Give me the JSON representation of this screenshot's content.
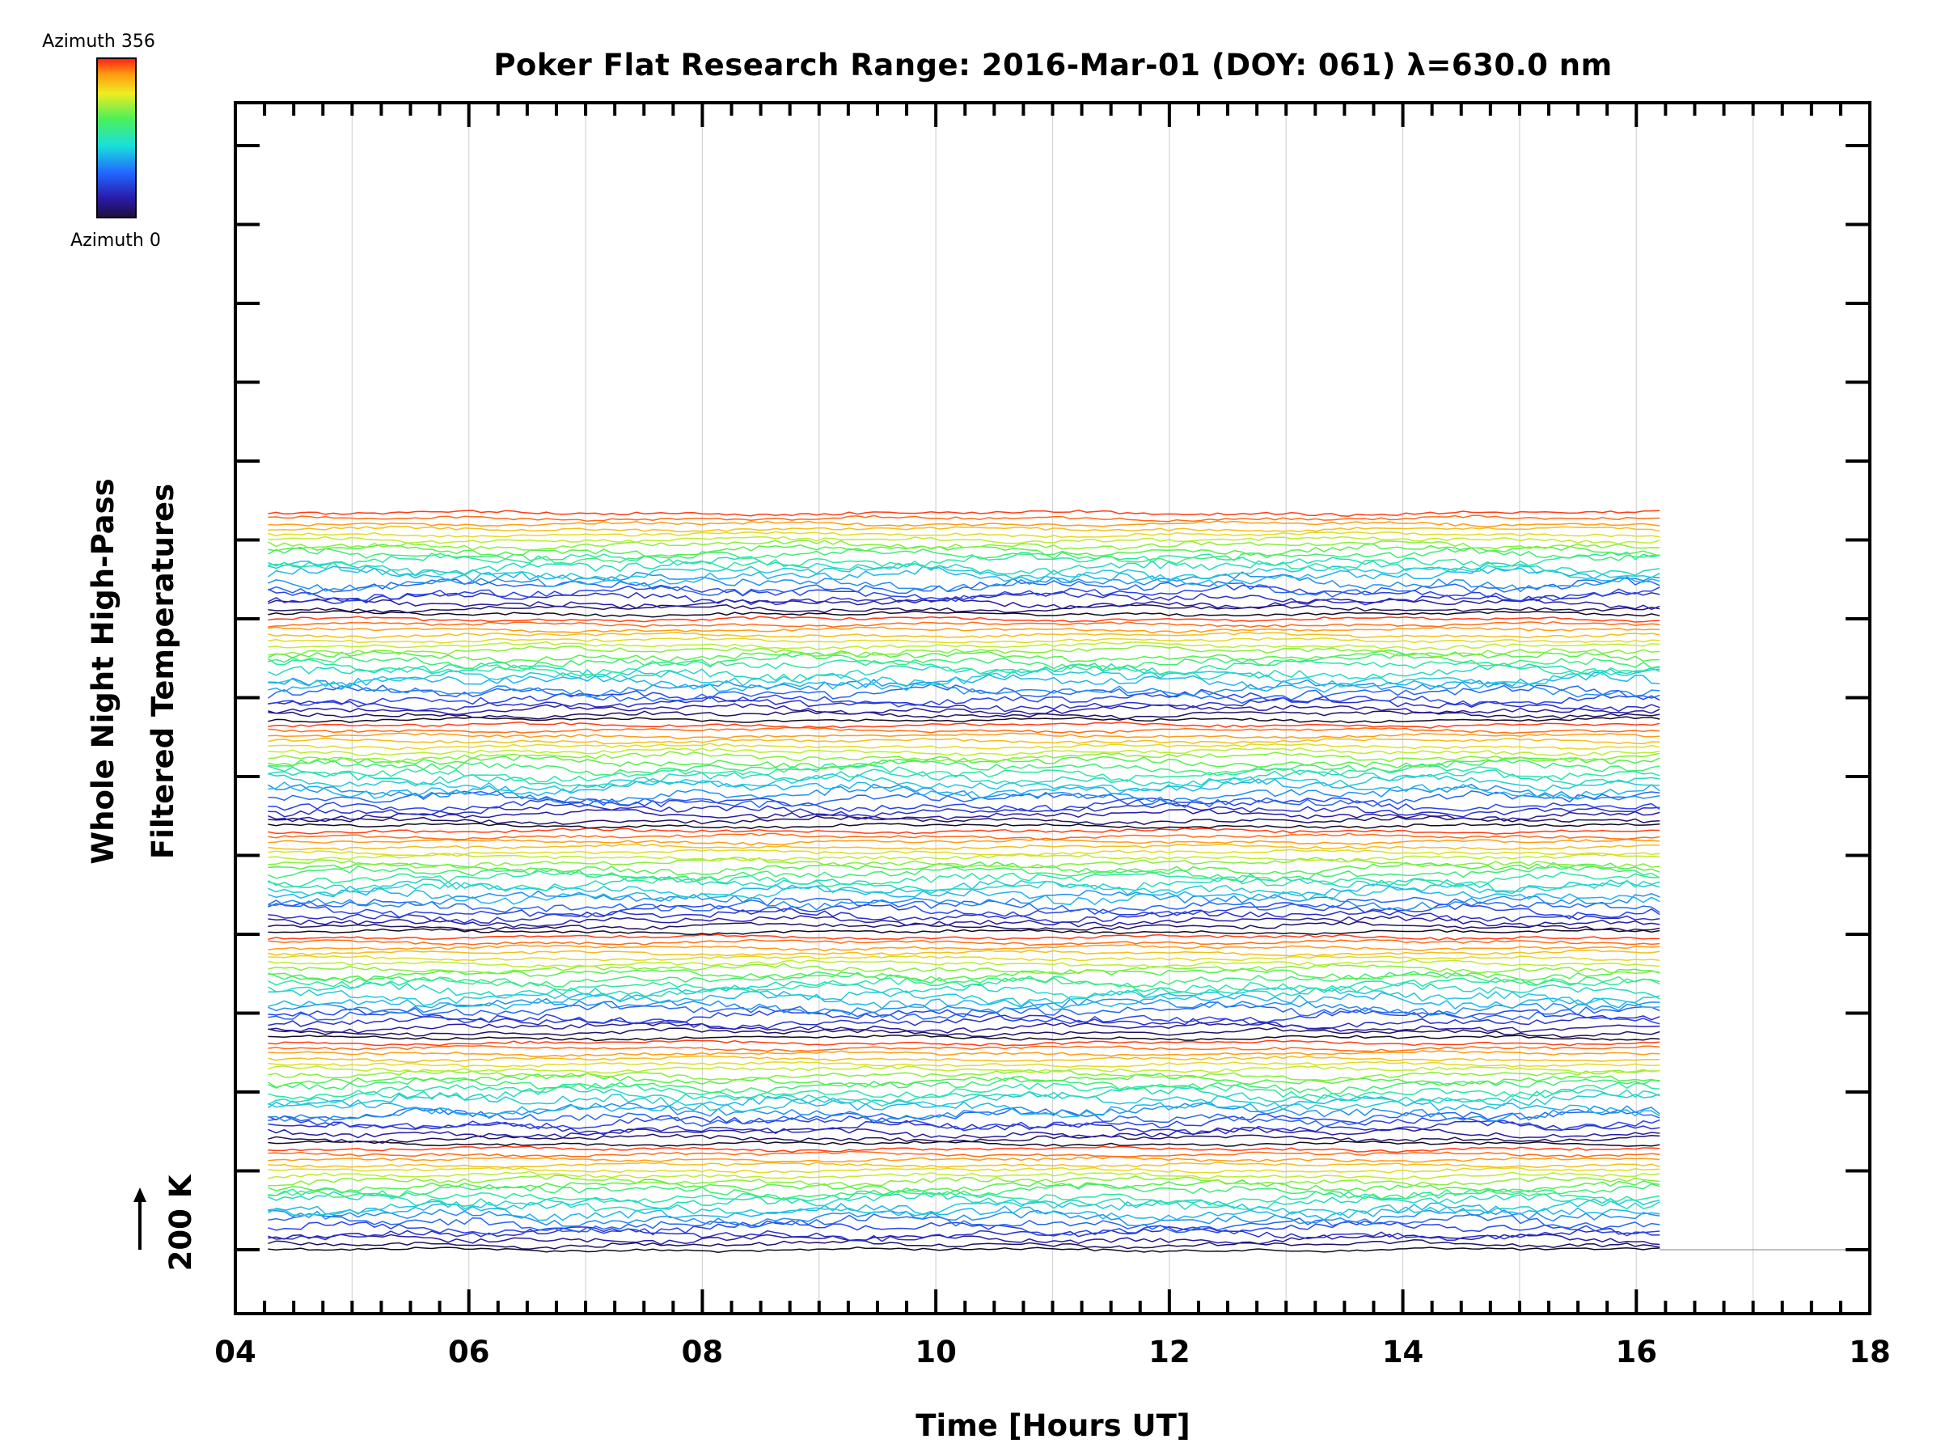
{
  "chart_data": {
    "type": "line",
    "title": "Poker Flat Research Range: 2016-Mar-01 (DOY: 061) λ=630.0 nm",
    "xlabel": "Time [Hours UT]",
    "ylabel_line1": "Whole Night High-Pass",
    "ylabel_line2": "Filtered Temperatures",
    "scale_label": "200 K",
    "xlim": [
      4,
      18
    ],
    "x_ticks": [
      "04",
      "06",
      "08",
      "10",
      "12",
      "14",
      "16",
      "18"
    ],
    "data_time_range": [
      4.28,
      16.2
    ],
    "grid": true,
    "colorbar": {
      "top_label": "Azimuth 356",
      "bottom_label": "Azimuth 0",
      "colormap": "rainbow (black → blue → cyan → green → yellow → orange → red)"
    },
    "series_description": "Stacked offset traces of filtered temperature per azimuth; traces are colored by azimuth and grouped in 7 azimuth sweeps (bottom to top)",
    "stack_groups": 7,
    "traces_per_group": 20
  }
}
